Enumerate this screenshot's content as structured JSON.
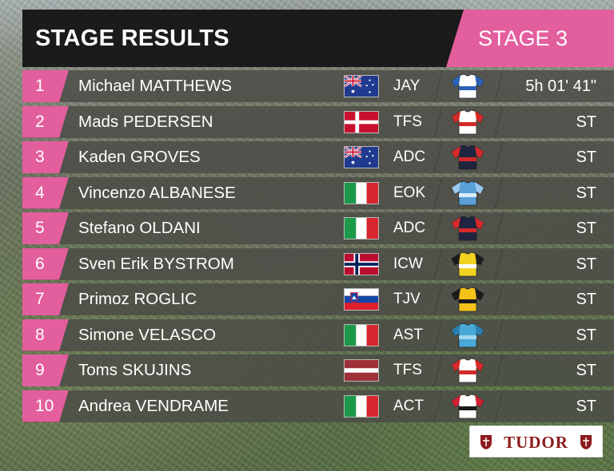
{
  "header": {
    "title": "STAGE RESULTS",
    "stage_label": "STAGE 3"
  },
  "colors": {
    "accent_pink": "#e35e9d",
    "header_bg": "#1b1b1b",
    "row_bg": "#4a4a46"
  },
  "results": [
    {
      "position": "1",
      "rider": "Michael MATTHEWS",
      "flag": "australia-flag",
      "team": "JAY",
      "jersey": "jersey-jay",
      "time": "5h 01' 41\""
    },
    {
      "position": "2",
      "rider": "Mads PEDERSEN",
      "flag": "denmark-flag",
      "team": "TFS",
      "jersey": "jersey-tfs",
      "time": "ST"
    },
    {
      "position": "3",
      "rider": "Kaden GROVES",
      "flag": "australia-flag",
      "team": "ADC",
      "jersey": "jersey-adc",
      "time": "ST"
    },
    {
      "position": "4",
      "rider": "Vincenzo ALBANESE",
      "flag": "italy-flag",
      "team": "EOK",
      "jersey": "jersey-eok",
      "time": "ST"
    },
    {
      "position": "5",
      "rider": "Stefano OLDANI",
      "flag": "italy-flag",
      "team": "ADC",
      "jersey": "jersey-adc",
      "time": "ST"
    },
    {
      "position": "6",
      "rider": "Sven Erik BYSTROM",
      "flag": "norway-flag",
      "team": "ICW",
      "jersey": "jersey-icw",
      "time": "ST"
    },
    {
      "position": "7",
      "rider": "Primoz ROGLIC",
      "flag": "slovenia-flag",
      "team": "TJV",
      "jersey": "jersey-tjv",
      "time": "ST"
    },
    {
      "position": "8",
      "rider": "Simone VELASCO",
      "flag": "italy-flag",
      "team": "AST",
      "jersey": "jersey-ast",
      "time": "ST"
    },
    {
      "position": "9",
      "rider": "Toms SKUJINS",
      "flag": "latvia-flag",
      "team": "TFS",
      "jersey": "jersey-tfs",
      "time": "ST"
    },
    {
      "position": "10",
      "rider": "Andrea VENDRAME",
      "flag": "italy-flag",
      "team": "ACT",
      "jersey": "jersey-act",
      "time": "ST"
    }
  ],
  "sponsor": {
    "name": "TUDOR",
    "icon": "tudor-shield-icon"
  }
}
